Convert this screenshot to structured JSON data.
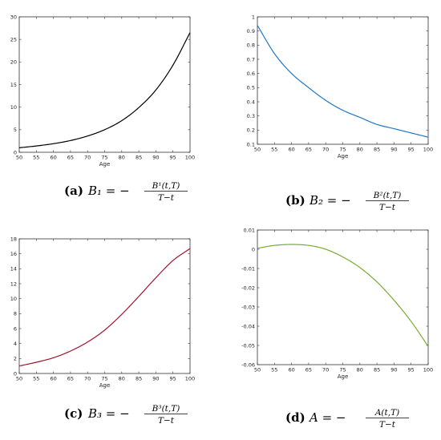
{
  "chart_data": [
    {
      "type": "line",
      "xlabel": "Age",
      "xlim": [
        50,
        100
      ],
      "ylim": [
        0,
        30
      ],
      "xticks": [
        50,
        55,
        60,
        65,
        70,
        75,
        80,
        85,
        90,
        95,
        100
      ],
      "yticks": [
        0,
        5,
        10,
        15,
        20,
        25,
        30
      ],
      "grid": false,
      "color": "#000000",
      "x": [
        50,
        55,
        60,
        65,
        70,
        75,
        80,
        85,
        90,
        95,
        100
      ],
      "y": [
        1.0,
        1.4,
        1.9,
        2.6,
        3.6,
        5.0,
        7.0,
        9.9,
        13.8,
        19.3,
        26.5
      ],
      "caption": {
        "tag": "(a)",
        "lhs": "B₁ = −",
        "num": "B¹(t,T)",
        "den": "T−t"
      }
    },
    {
      "type": "line",
      "xlabel": "Age",
      "xlim": [
        50,
        100
      ],
      "ylim": [
        0.1,
        1
      ],
      "xticks": [
        50,
        55,
        60,
        65,
        70,
        75,
        80,
        85,
        90,
        95,
        100
      ],
      "yticks": [
        0.1,
        0.2,
        0.3,
        0.4,
        0.5,
        0.6,
        0.7,
        0.8,
        0.9,
        1
      ],
      "grid": false,
      "color": "#1f77c4",
      "x": [
        50,
        55,
        60,
        65,
        70,
        75,
        80,
        85,
        90,
        95,
        100
      ],
      "y": [
        0.94,
        0.74,
        0.6,
        0.5,
        0.41,
        0.34,
        0.29,
        0.24,
        0.21,
        0.18,
        0.15
      ],
      "caption": {
        "tag": "(b)",
        "lhs": "B₂ = −",
        "num": "B²(t,T)",
        "den": "T−t"
      }
    },
    {
      "type": "line",
      "xlabel": "Age",
      "xlim": [
        50,
        100
      ],
      "ylim": [
        0,
        18
      ],
      "xticks": [
        50,
        55,
        60,
        65,
        70,
        75,
        80,
        85,
        90,
        95,
        100
      ],
      "yticks": [
        0,
        2,
        4,
        6,
        8,
        10,
        12,
        14,
        16,
        18
      ],
      "grid": false,
      "color": "#a2142f",
      "x": [
        50,
        55,
        60,
        65,
        70,
        75,
        80,
        85,
        90,
        95,
        100
      ],
      "y": [
        1.0,
        1.5,
        2.1,
        3.0,
        4.2,
        5.8,
        7.9,
        10.3,
        12.8,
        15.1,
        16.7
      ],
      "caption": {
        "tag": "(c)",
        "lhs": "B₃ = −",
        "num": "B³(t,T)",
        "den": "T−t"
      }
    },
    {
      "type": "line",
      "xlabel": "Age",
      "xlim": [
        50,
        100
      ],
      "ylim": [
        -0.06,
        0.01
      ],
      "xticks": [
        50,
        55,
        60,
        65,
        70,
        75,
        80,
        85,
        90,
        95,
        100
      ],
      "yticks": [
        -0.06,
        -0.05,
        -0.04,
        -0.03,
        -0.02,
        -0.01,
        0,
        0.01
      ],
      "grid": false,
      "color": "#77ac30",
      "x": [
        50,
        55,
        60,
        65,
        70,
        75,
        80,
        85,
        90,
        95,
        100
      ],
      "y": [
        0.0005,
        0.002,
        0.0025,
        0.002,
        0.0,
        -0.004,
        -0.0095,
        -0.017,
        -0.0265,
        -0.0375,
        -0.0505
      ],
      "caption": {
        "tag": "(d)",
        "lhs": "A = −",
        "num": "A(t,T)",
        "den": "T−t"
      }
    }
  ]
}
